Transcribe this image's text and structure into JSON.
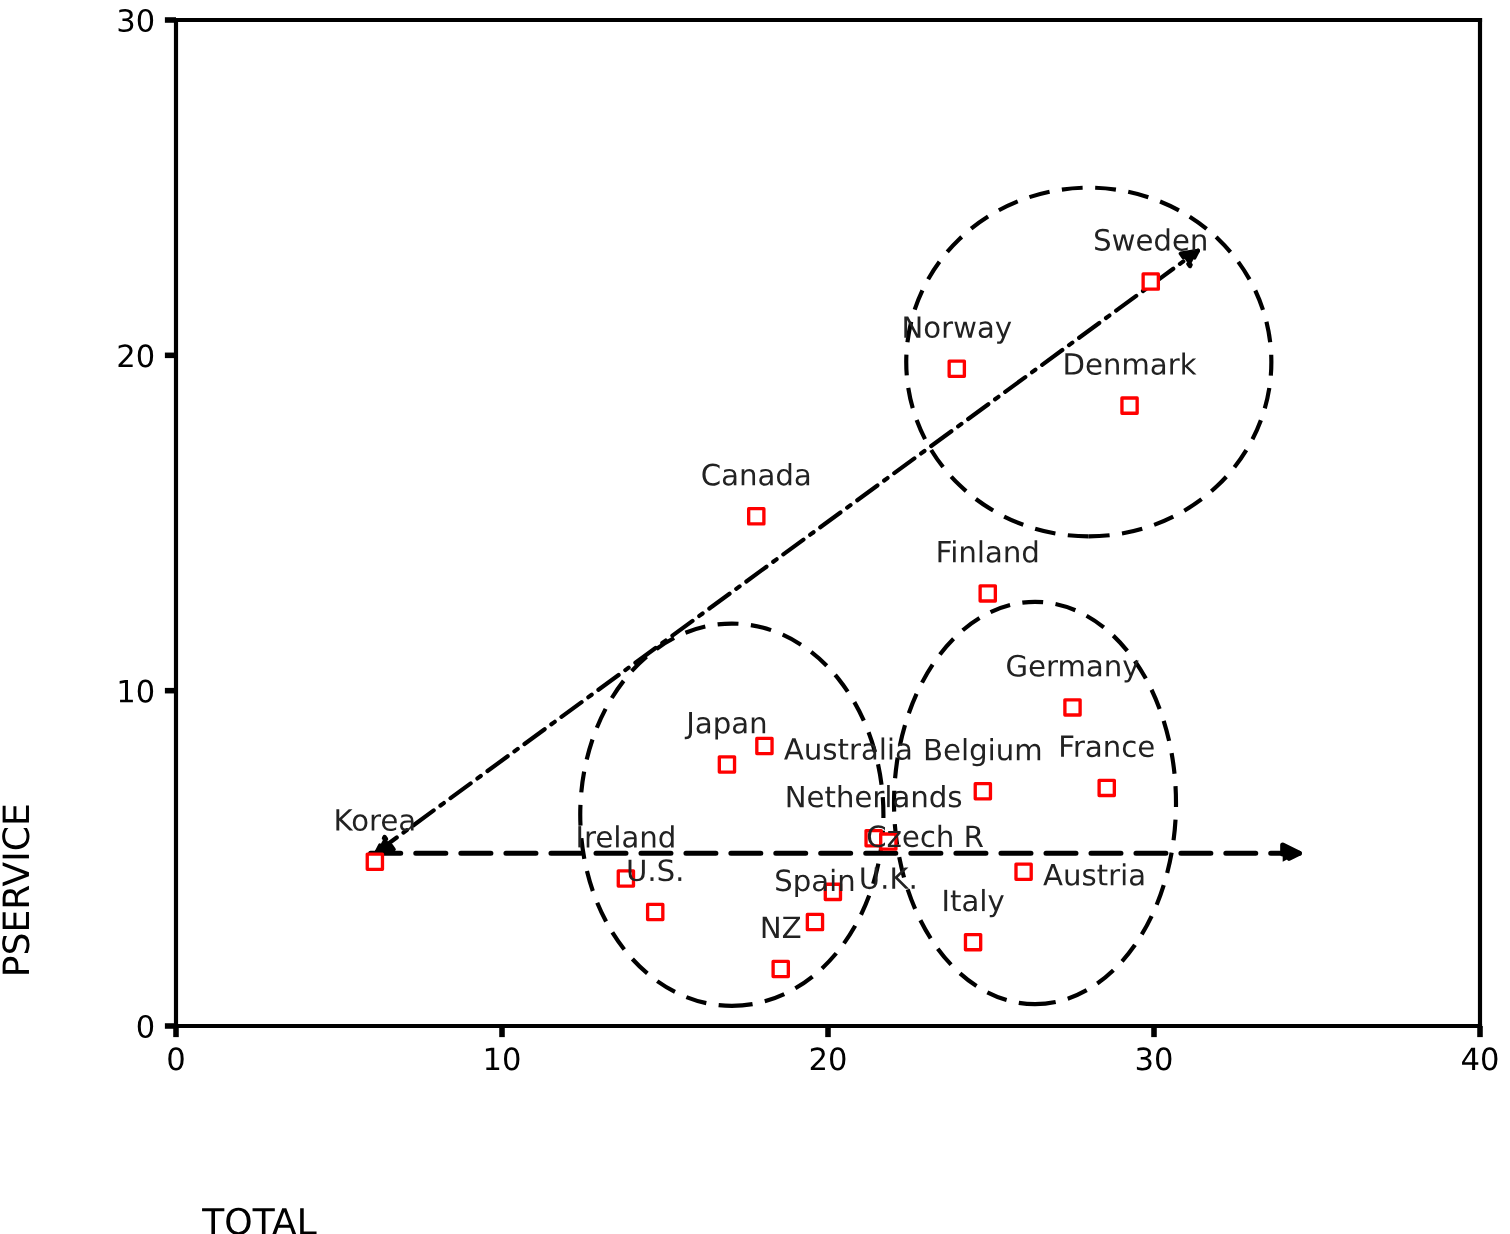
{
  "chart_data": {
    "type": "scatter",
    "xlabel": "TOTAL",
    "ylabel": "PSERVICE",
    "x": [
      6.1,
      13.8,
      14.7,
      16.9,
      18.05,
      18.55,
      19.6,
      20.15,
      21.4,
      21.85,
      17.8,
      24.9,
      27.5,
      28.55,
      24.75,
      26.0,
      24.45,
      29.9,
      23.95,
      29.25
    ],
    "series": [
      {
        "color": "#ff0000",
        "values": [
          4.9,
          4.4,
          3.4,
          7.8,
          8.35,
          1.7,
          3.1,
          4.0,
          5.6,
          5.5,
          15.2,
          12.9,
          9.5,
          7.1,
          7.0,
          4.6,
          2.5,
          22.2,
          19.6,
          18.5
        ]
      }
    ],
    "annotations": [
      {
        "text": "Korea",
        "x": 6.1,
        "y": 4.9
      },
      {
        "text": "Ireland",
        "x": 13.8,
        "y": 4.4
      },
      {
        "text": "U.S.",
        "x": 14.7,
        "y": 3.4
      },
      {
        "text": "Japan",
        "x": 16.9,
        "y": 7.8
      },
      {
        "text": "Australia",
        "x": 18.05,
        "y": 8.35
      },
      {
        "text": "NZ",
        "x": 18.55,
        "y": 1.7
      },
      {
        "text": "Spain",
        "x": 19.6,
        "y": 3.1
      },
      {
        "text": "Czech R",
        "x": 20.15,
        "y": 4.0
      },
      {
        "text": "Netherlands",
        "x": 21.4,
        "y": 5.6
      },
      {
        "text": "U.K.",
        "x": 21.85,
        "y": 5.5
      },
      {
        "text": "Canada",
        "x": 17.8,
        "y": 15.2
      },
      {
        "text": "Finland",
        "x": 24.9,
        "y": 12.9
      },
      {
        "text": "Germany",
        "x": 27.5,
        "y": 9.5
      },
      {
        "text": "France",
        "x": 28.55,
        "y": 7.1
      },
      {
        "text": "Belgium",
        "x": 24.75,
        "y": 7.0
      },
      {
        "text": "Austria",
        "x": 26.0,
        "y": 4.6
      },
      {
        "text": "Italy",
        "x": 24.45,
        "y": 2.5
      },
      {
        "text": "Sweden",
        "x": 29.9,
        "y": 22.2
      },
      {
        "text": "Norway",
        "x": 23.95,
        "y": 19.6
      },
      {
        "text": "Denmark",
        "x": 29.25,
        "y": 18.5
      }
    ],
    "xlim": [
      0,
      40
    ],
    "ylim": [
      0,
      30
    ],
    "xticks": [
      0,
      10,
      20,
      30,
      40
    ],
    "yticks": [
      0,
      10,
      20,
      30
    ],
    "marker": "square",
    "grid": false,
    "legend": false
  }
}
